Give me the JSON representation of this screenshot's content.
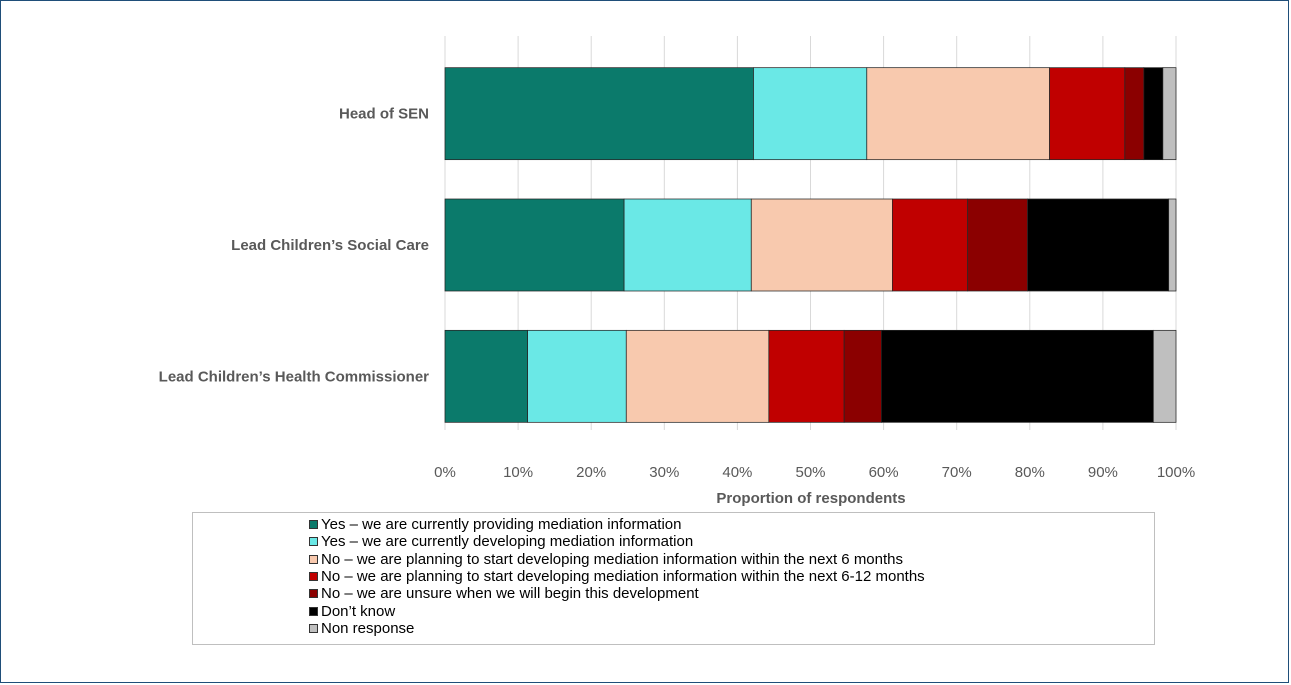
{
  "chart_data": {
    "type": "bar",
    "orientation": "horizontal",
    "stacked": true,
    "title": "",
    "xlabel": "Proportion of respondents",
    "ylabel": "",
    "xlim": [
      0,
      100
    ],
    "x_ticks": [
      "0%",
      "10%",
      "20%",
      "30%",
      "40%",
      "50%",
      "60%",
      "70%",
      "80%",
      "90%",
      "100%"
    ],
    "grid": "vertical gridlines on",
    "legend_position": "bottom",
    "categories": [
      "Head of SEN",
      "Lead Children’s Social Care",
      "Lead Children’s Health Commissioner"
    ],
    "series": [
      {
        "name": "Yes – we are currently providing mediation information",
        "color": "#0b7a6b",
        "values": [
          42.2,
          24.5,
          11.3
        ]
      },
      {
        "name": "Yes – we are currently developing mediation information",
        "color": "#6ae8e6",
        "values": [
          15.5,
          17.4,
          13.5
        ]
      },
      {
        "name": "No – we are planning to start developing  mediation information within  the next 6 months",
        "color": "#f8c9ae",
        "values": [
          25.0,
          19.3,
          19.5
        ]
      },
      {
        "name": "No – we are planning to start developing mediation information within  the next 6-12 months",
        "color": "#c00000",
        "values": [
          10.3,
          10.3,
          10.3
        ]
      },
      {
        "name": "No – we are unsure when we will begin this development",
        "color": "#8b0000",
        "values": [
          2.6,
          8.2,
          5.1
        ]
      },
      {
        "name": "Don’t know",
        "color": "#000000",
        "values": [
          2.6,
          19.3,
          37.2
        ]
      },
      {
        "name": "Non response",
        "color": "#bfbfbf",
        "values": [
          1.8,
          1.0,
          3.1
        ]
      }
    ]
  }
}
